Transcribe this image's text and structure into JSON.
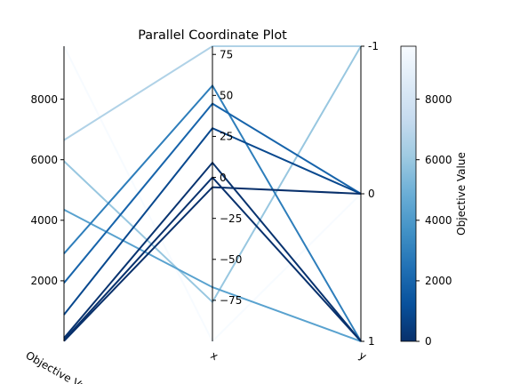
{
  "chart_data": {
    "type": "parallel_coordinates",
    "title": "Parallel Coordinate Plot",
    "axes": [
      {
        "key": "objective",
        "label": "Objective Value",
        "range": [
          0,
          9750
        ],
        "ticks": [
          2000,
          4000,
          6000,
          8000
        ],
        "tick_labels": [
          "2000",
          "4000",
          "6000",
          "8000"
        ]
      },
      {
        "key": "x",
        "label": "x",
        "range": [
          -100,
          80
        ],
        "ticks": [
          75,
          50,
          25,
          0,
          -25,
          -50,
          -75
        ],
        "tick_labels": [
          "75",
          "50",
          "25",
          "0",
          "−25",
          "−50",
          "−75"
        ]
      },
      {
        "key": "y",
        "label": "y",
        "range": [
          1,
          -1
        ],
        "categorical": true,
        "ticks": [
          -1,
          0,
          1
        ],
        "tick_labels": [
          "-1",
          "0",
          "1"
        ]
      }
    ],
    "trials": [
      {
        "objective": 9750,
        "x": -100,
        "y": 0
      },
      {
        "objective": 6650,
        "x": 80,
        "y": -1
      },
      {
        "objective": 5950,
        "x": -76,
        "y": -1
      },
      {
        "objective": 4350,
        "x": -67,
        "y": 1
      },
      {
        "objective": 2900,
        "x": 56,
        "y": 1
      },
      {
        "objective": 1930,
        "x": 45,
        "y": 0
      },
      {
        "objective": 880,
        "x": 30,
        "y": 0
      },
      {
        "objective": 110,
        "x": 9,
        "y": 1
      },
      {
        "objective": 40,
        "x": 0,
        "y": 1
      },
      {
        "objective": 10,
        "x": -6,
        "y": 0
      }
    ],
    "colorbar": {
      "label": "Objective Value",
      "colormap": "Blues_r",
      "range": [
        0,
        9750
      ],
      "ticks": [
        0,
        2000,
        4000,
        6000,
        8000
      ],
      "tick_labels": [
        "0",
        "2000",
        "4000",
        "6000",
        "8000"
      ]
    }
  }
}
